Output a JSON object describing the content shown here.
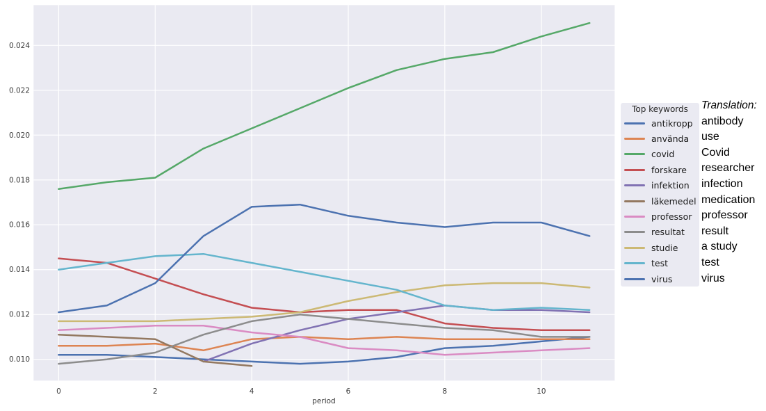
{
  "chart_data": {
    "type": "line",
    "x": [
      0,
      1,
      2,
      3,
      4,
      5,
      6,
      7,
      8,
      9,
      10,
      11
    ],
    "xlabel": "period",
    "x_tick_values": [
      0,
      2,
      4,
      6,
      8,
      10
    ],
    "x_tick_labels": [
      "0",
      "2",
      "4",
      "6",
      "8",
      "10"
    ],
    "y_tick_values": [
      0.01,
      0.012,
      0.014,
      0.016,
      0.018,
      0.02,
      0.022,
      0.024
    ],
    "y_tick_labels": [
      "0.010",
      "0.012",
      "0.014",
      "0.016",
      "0.018",
      "0.020",
      "0.022",
      "0.024"
    ],
    "xlim": [
      -0.52,
      11.52
    ],
    "ylim": [
      0.00905,
      0.0258
    ],
    "grid": true,
    "plot_bg_color": "#eaeaf2",
    "grid_color": "#ffffff",
    "legend_position": "right-outside",
    "series": [
      {
        "name": "antikropp",
        "color": "#4C72B0",
        "values": [
          0.0102,
          0.0102,
          0.0101,
          0.01,
          0.0099,
          0.0098,
          0.0099,
          0.0101,
          0.0105,
          0.0106,
          0.0108,
          0.011
        ]
      },
      {
        "name": "använda",
        "color": "#DD8452",
        "values": [
          0.0106,
          0.0106,
          0.0107,
          0.0104,
          0.0109,
          0.011,
          0.0109,
          0.011,
          0.0109,
          0.0109,
          0.0109,
          0.0109
        ]
      },
      {
        "name": "covid",
        "color": "#55A868",
        "values": [
          0.0176,
          0.0179,
          0.0181,
          0.0194,
          0.0203,
          0.0212,
          0.0221,
          0.0229,
          0.0234,
          0.0237,
          0.0244,
          0.025
        ]
      },
      {
        "name": "forskare",
        "color": "#C44E52",
        "values": [
          0.0145,
          0.0143,
          0.0136,
          0.0129,
          0.0123,
          0.0121,
          0.0122,
          0.0122,
          0.0116,
          0.0114,
          0.0113,
          0.0113
        ]
      },
      {
        "name": "infektion",
        "color": "#8172B3",
        "values": [
          null,
          null,
          null,
          0.0099,
          0.0107,
          0.0113,
          0.0118,
          0.0121,
          0.0124,
          0.0122,
          0.0122,
          0.0121
        ]
      },
      {
        "name": "läkemedel",
        "color": "#937860",
        "values": [
          0.0111,
          0.011,
          0.0109,
          0.0099,
          0.0097,
          null,
          null,
          null,
          null,
          null,
          null,
          null
        ]
      },
      {
        "name": "professor",
        "color": "#DA8BC3",
        "values": [
          0.0113,
          0.0114,
          0.0115,
          0.0115,
          0.0112,
          0.011,
          0.0105,
          0.0104,
          0.0102,
          0.0103,
          0.0104,
          0.0105
        ]
      },
      {
        "name": "resultat",
        "color": "#8C8C8C",
        "values": [
          0.0098,
          0.01,
          0.0103,
          0.0111,
          0.0117,
          0.012,
          0.0118,
          0.0116,
          0.0114,
          0.0113,
          0.011,
          0.011
        ]
      },
      {
        "name": "studie",
        "color": "#CCB974",
        "values": [
          0.0117,
          0.0117,
          0.0117,
          0.0118,
          0.0119,
          0.0121,
          0.0126,
          0.013,
          0.0133,
          0.0134,
          0.0134,
          0.0132
        ]
      },
      {
        "name": "test",
        "color": "#64B5CD",
        "values": [
          0.014,
          0.0143,
          0.0146,
          0.0147,
          0.0143,
          0.0139,
          0.0135,
          0.0131,
          0.0124,
          0.0122,
          0.0123,
          0.0122
        ]
      },
      {
        "name": "virus",
        "color": "#4C72B0",
        "values": [
          0.0121,
          0.0124,
          0.0134,
          0.0155,
          0.0168,
          0.0169,
          0.0164,
          0.0161,
          0.0159,
          0.0161,
          0.0161,
          0.0155
        ]
      }
    ]
  },
  "legend": {
    "title": "Top keywords"
  },
  "translation": {
    "header": "Translation:",
    "items": [
      "antibody",
      "use",
      "Covid",
      "researcher",
      "infection",
      "medication",
      "professor",
      "result",
      "a study",
      "test",
      "virus"
    ]
  }
}
